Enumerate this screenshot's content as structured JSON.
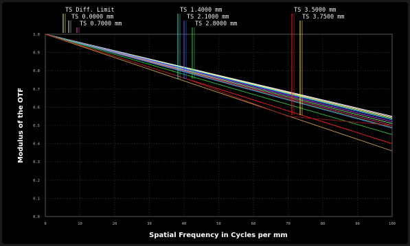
{
  "chart_data": {
    "type": "line",
    "title": "",
    "xlabel": "Spatial Frequency in Cycles per mm",
    "ylabel": "Modulus of the OTF",
    "xlim": [
      0,
      100
    ],
    "ylim": [
      0,
      1
    ],
    "x_ticks": [
      "0",
      "10",
      "20",
      "30",
      "40",
      "50",
      "60",
      "70",
      "80",
      "90",
      "100"
    ],
    "y_ticks": [
      "0.0",
      "0.1",
      "0.2",
      "0.3",
      "0.4",
      "0.5",
      "0.6",
      "0.7",
      "0.8",
      "0.9",
      "1.0"
    ],
    "grid": true,
    "legend": [
      {
        "label": "TS Diff. Limit"
      },
      {
        "label": "TS 0.0000 mm"
      },
      {
        "label": "TS 0.7000 mm"
      },
      {
        "label": "TS 1.4000 mm"
      },
      {
        "label": "TS 2.1000 mm"
      },
      {
        "label": "TS 2.8000 mm"
      },
      {
        "label": "TS 3.5000 mm"
      },
      {
        "label": "TS 3.7500 mm"
      }
    ],
    "series": [
      {
        "color": "#ffffff",
        "x": [
          0,
          100
        ],
        "y": [
          1.0,
          0.55
        ]
      },
      {
        "color": "#e8e8e8",
        "x": [
          0,
          100
        ],
        "y": [
          1.0,
          0.545
        ]
      },
      {
        "color": "#ffe840",
        "x": [
          0,
          100
        ],
        "y": [
          1.0,
          0.54
        ]
      },
      {
        "color": "#40e0d0",
        "x": [
          0,
          100
        ],
        "y": [
          1.0,
          0.535
        ]
      },
      {
        "color": "#3c6cff",
        "x": [
          0,
          100
        ],
        "y": [
          1.0,
          0.53
        ]
      },
      {
        "color": "#b040ff",
        "x": [
          0,
          100
        ],
        "y": [
          1.0,
          0.52
        ]
      },
      {
        "color": "#7cff6a",
        "x": [
          0,
          100
        ],
        "y": [
          1.0,
          0.51
        ]
      },
      {
        "color": "#ff3c9c",
        "x": [
          0,
          100
        ],
        "y": [
          1.0,
          0.5
        ]
      },
      {
        "color": "#7a7a30",
        "x": [
          0,
          100
        ],
        "y": [
          1.0,
          0.49
        ]
      },
      {
        "color": "#3fa0ff",
        "x": [
          0,
          100
        ],
        "y": [
          1.0,
          0.485
        ]
      },
      {
        "color": "#2ec93c",
        "x": [
          0,
          100
        ],
        "y": [
          1.0,
          0.45
        ]
      },
      {
        "color": "#ff2020",
        "x": [
          0,
          100
        ],
        "y": [
          1.0,
          0.4
        ]
      },
      {
        "color": "#c8a040",
        "x": [
          0,
          100
        ],
        "y": [
          1.0,
          0.36
        ]
      },
      {
        "color": "#a01818",
        "x": [
          0,
          40,
          70,
          100
        ],
        "y": [
          1.0,
          0.76,
          0.55,
          0.5
        ]
      }
    ],
    "legend_colors": [
      "#f4f4a0",
      "#e0e0e0",
      "#ff40c0",
      "#40e0d0",
      "#3c6cff",
      "#2ec93c",
      "#ff2020",
      "#ffe840"
    ]
  }
}
